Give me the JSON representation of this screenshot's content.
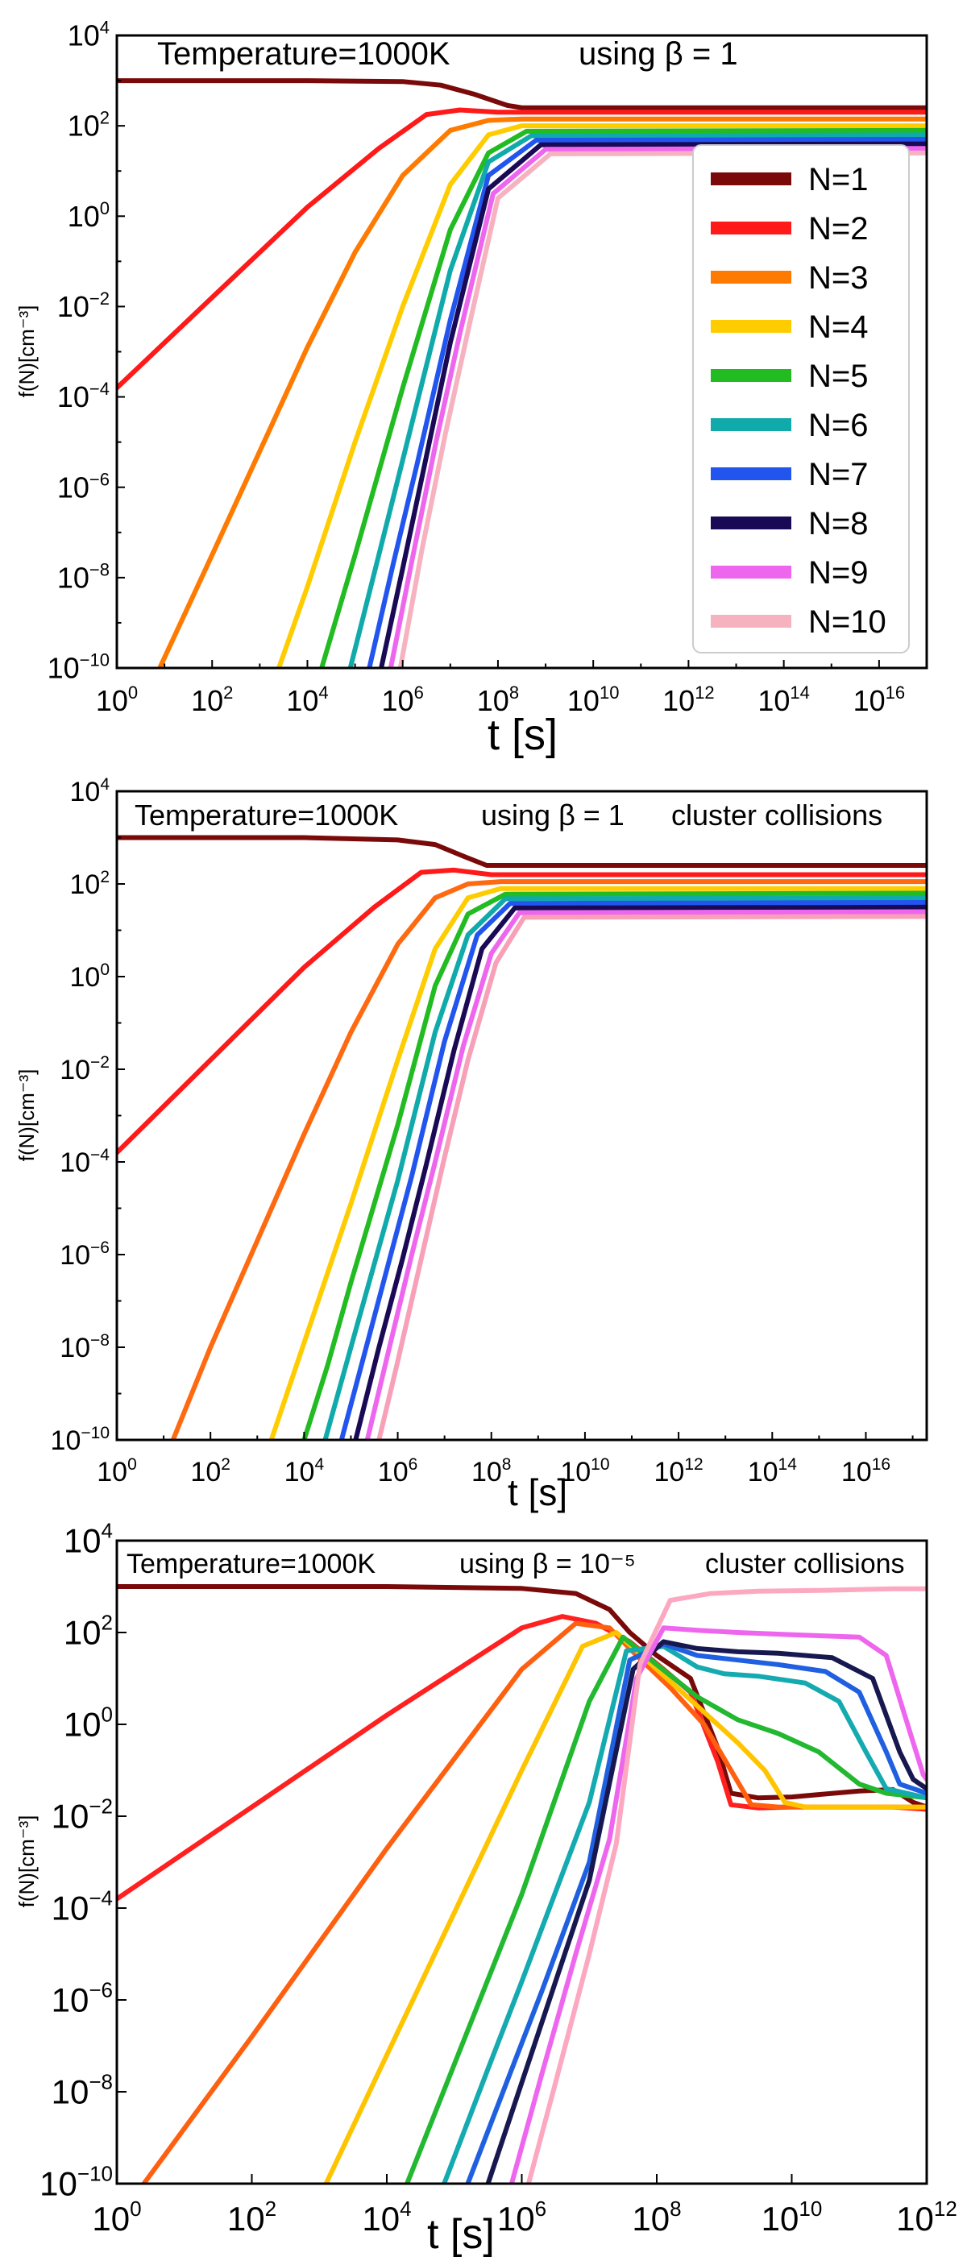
{
  "figure_title": "f(N) vs t at Temperature=1000K",
  "chart_data": [
    {
      "type": "line",
      "panel": "top",
      "title_temp": "Temperature=1000K",
      "title_beta": "using β = 1",
      "title_extra": "",
      "xlabel": "t [s]",
      "ylabel": "f(N)[cm⁻³]",
      "xscale": "log",
      "yscale": "log",
      "xlim_exp": [
        0,
        17
      ],
      "ylim_exp": [
        -10,
        4
      ],
      "xtick_labels": [
        "10^0",
        "10^2",
        "10^4",
        "10^6",
        "10^8",
        "10^10",
        "10^12",
        "10^14",
        "10^16"
      ],
      "ytick_labels": [
        "10^-10",
        "10^-8",
        "10^-6",
        "10^-4",
        "10^-2",
        "10^0",
        "10^2",
        "10^4"
      ],
      "legend": {
        "placement": "right",
        "entries": [
          "N=1",
          "N=2",
          "N=3",
          "N=4",
          "N=5",
          "N=6",
          "N=7",
          "N=8",
          "N=9",
          "N=10"
        ]
      },
      "series": [
        {
          "name": "N=1",
          "color": "#7a0a0a",
          "log_t": [
            0,
            4,
            6,
            6.8,
            7.5,
            8.2,
            8.5,
            17
          ],
          "log_f": [
            3,
            3,
            2.98,
            2.9,
            2.7,
            2.45,
            2.4,
            2.4
          ]
        },
        {
          "name": "N=2",
          "color": "#ff1a1a",
          "log_t": [
            0,
            2,
            4,
            5.5,
            6.5,
            7.2,
            8,
            9,
            17
          ],
          "log_f": [
            -3.8,
            -1.8,
            0.2,
            1.5,
            2.25,
            2.35,
            2.3,
            2.3,
            2.3
          ]
        },
        {
          "name": "N=3",
          "color": "#ff7a00",
          "log_t": [
            0.9,
            2,
            3,
            4,
            5,
            6,
            7,
            7.8,
            8.5,
            17
          ],
          "log_f": [
            -10,
            -7.5,
            -5.2,
            -2.9,
            -0.8,
            0.9,
            1.9,
            2.12,
            2.15,
            2.15
          ]
        },
        {
          "name": "N=4",
          "color": "#ffcc00",
          "log_t": [
            3.4,
            4,
            5,
            6,
            7,
            7.8,
            8.5,
            17
          ],
          "log_f": [
            -10,
            -8.2,
            -5,
            -2,
            0.7,
            1.8,
            2.0,
            2.0
          ]
        },
        {
          "name": "N=5",
          "color": "#22bb22",
          "log_t": [
            4.3,
            5,
            6,
            7,
            7.8,
            8.6,
            17
          ],
          "log_f": [
            -10,
            -7.5,
            -3.8,
            -0.3,
            1.4,
            1.88,
            1.9
          ]
        },
        {
          "name": "N=6",
          "color": "#11aaaa",
          "log_t": [
            4.9,
            5.5,
            6,
            7,
            7.8,
            8.7,
            17
          ],
          "log_f": [
            -10,
            -7.5,
            -5.4,
            -1.2,
            1.2,
            1.78,
            1.8
          ]
        },
        {
          "name": "N=7",
          "color": "#2255ee",
          "log_t": [
            5.3,
            5.8,
            6.3,
            7,
            7.8,
            8.8,
            17
          ],
          "log_f": [
            -10,
            -7.7,
            -5.5,
            -2.3,
            0.9,
            1.68,
            1.7
          ]
        },
        {
          "name": "N=8",
          "color": "#1a0a55",
          "log_t": [
            5.55,
            6,
            6.5,
            7,
            7.8,
            8.9,
            17
          ],
          "log_f": [
            -10,
            -7.8,
            -5.3,
            -2.8,
            0.6,
            1.58,
            1.6
          ]
        },
        {
          "name": "N=9",
          "color": "#ee66ee",
          "log_t": [
            5.75,
            6.2,
            6.7,
            7.2,
            7.9,
            9,
            17
          ],
          "log_f": [
            -10,
            -7.6,
            -5,
            -2.6,
            0.5,
            1.48,
            1.5
          ]
        },
        {
          "name": "N=10",
          "color": "#f7b2c0",
          "log_t": [
            5.95,
            6.4,
            6.9,
            7.4,
            8,
            9.1,
            17
          ],
          "log_f": [
            -10,
            -7.4,
            -4.8,
            -2.4,
            0.4,
            1.38,
            1.4
          ]
        }
      ]
    },
    {
      "type": "line",
      "panel": "middle",
      "title_temp": "Temperature=1000K",
      "title_beta": "using β = 1",
      "title_extra": "cluster collisions",
      "xlabel": "t [s]",
      "ylabel": "f(N)[cm⁻³]",
      "xscale": "log",
      "yscale": "log",
      "xlim_exp": [
        0,
        17.3
      ],
      "ylim_exp": [
        -10,
        4
      ],
      "xtick_labels": [
        "10^0",
        "10^2",
        "10^4",
        "10^6",
        "10^8",
        "10^10",
        "10^12",
        "10^14",
        "10^16"
      ],
      "ytick_labels": [
        "10^-10",
        "10^-8",
        "10^-6",
        "10^-4",
        "10^-2",
        "10^0",
        "10^2",
        "10^4"
      ],
      "series": [
        {
          "name": "N=1",
          "color": "#7a0a0a",
          "log_t": [
            0,
            4,
            6,
            6.8,
            7.4,
            7.9,
            8.2,
            17.3
          ],
          "log_f": [
            3,
            3,
            2.95,
            2.85,
            2.6,
            2.4,
            2.4,
            2.4
          ]
        },
        {
          "name": "N=2",
          "color": "#ff1a1a",
          "log_t": [
            0,
            2,
            4,
            5.5,
            6.5,
            7.2,
            8,
            17.3
          ],
          "log_f": [
            -3.8,
            -1.8,
            0.2,
            1.5,
            2.25,
            2.3,
            2.2,
            2.2
          ]
        },
        {
          "name": "N=3",
          "color": "#ff6a10",
          "log_t": [
            1.2,
            2,
            3,
            4,
            5,
            6,
            6.8,
            7.5,
            8.2,
            17.3
          ],
          "log_f": [
            -10,
            -8,
            -5.7,
            -3.4,
            -1.2,
            0.7,
            1.7,
            2.0,
            2.05,
            2.05
          ]
        },
        {
          "name": "N=4",
          "color": "#ffcc00",
          "log_t": [
            3.3,
            4,
            5,
            6,
            6.8,
            7.5,
            8.2,
            17.3
          ],
          "log_f": [
            -10,
            -7.9,
            -4.9,
            -1.8,
            0.6,
            1.7,
            1.9,
            1.9
          ]
        },
        {
          "name": "N=5",
          "color": "#22bb22",
          "log_t": [
            4,
            4.5,
            5,
            6,
            6.8,
            7.5,
            8.3,
            17.3
          ],
          "log_f": [
            -10,
            -8.4,
            -6.6,
            -3.2,
            -0.2,
            1.35,
            1.78,
            1.8
          ]
        },
        {
          "name": "N=6",
          "color": "#11aaaa",
          "log_t": [
            4.45,
            5,
            5.5,
            6,
            6.8,
            7.5,
            8.3,
            17.3
          ],
          "log_f": [
            -10,
            -8,
            -6.2,
            -4.4,
            -1.2,
            0.9,
            1.68,
            1.7
          ]
        },
        {
          "name": "N=7",
          "color": "#2255ee",
          "log_t": [
            4.8,
            5.3,
            5.8,
            6.3,
            7,
            7.7,
            8.4,
            17.3
          ],
          "log_f": [
            -10,
            -8.1,
            -6.2,
            -4.3,
            -1.4,
            0.9,
            1.58,
            1.6
          ]
        },
        {
          "name": "N=8",
          "color": "#1a0a55",
          "log_t": [
            5.1,
            5.6,
            6.1,
            6.6,
            7.2,
            7.8,
            8.5,
            17.3
          ],
          "log_f": [
            -10,
            -8,
            -6.1,
            -4.1,
            -1.6,
            0.6,
            1.48,
            1.5
          ]
        },
        {
          "name": "N=9",
          "color": "#ee66ee",
          "log_t": [
            5.35,
            5.8,
            6.3,
            6.8,
            7.4,
            8,
            8.6,
            17.3
          ],
          "log_f": [
            -10,
            -8.1,
            -6,
            -4,
            -1.5,
            0.5,
            1.38,
            1.4
          ]
        },
        {
          "name": "N=10",
          "color": "#f7a0b8",
          "log_t": [
            5.6,
            6,
            6.5,
            7,
            7.5,
            8.1,
            8.7,
            17.3
          ],
          "log_f": [
            -10,
            -8.3,
            -6.1,
            -3.9,
            -1.8,
            0.3,
            1.28,
            1.3
          ]
        }
      ]
    },
    {
      "type": "line",
      "panel": "bottom",
      "title_temp": "Temperature=1000K",
      "title_beta": "using β = 10⁻⁵",
      "title_extra": "cluster collisions",
      "xlabel": "t [s]",
      "ylabel": "f(N)[cm⁻³]",
      "xscale": "log",
      "yscale": "log",
      "xlim_exp": [
        0,
        12
      ],
      "ylim_exp": [
        -10,
        4
      ],
      "xtick_labels": [
        "10^0",
        "10^2",
        "10^4",
        "10^6",
        "10^8",
        "10^10",
        "10^12"
      ],
      "ytick_labels": [
        "10^-10",
        "10^-8",
        "10^-6",
        "10^-4",
        "10^-2",
        "10^0",
        "10^2",
        "10^4"
      ],
      "series": [
        {
          "name": "N=1",
          "color": "#7a0a0a",
          "log_t": [
            0,
            4,
            6,
            6.8,
            7.3,
            7.6,
            8,
            8.5,
            8.9,
            9.1,
            9.5,
            10,
            11,
            11.5,
            11.8,
            12
          ],
          "log_f": [
            3,
            3,
            2.96,
            2.85,
            2.5,
            2.0,
            1.5,
            1.0,
            -0.5,
            -1.5,
            -1.6,
            -1.58,
            -1.45,
            -1.42,
            -1.7,
            -1.8
          ]
        },
        {
          "name": "N=2",
          "color": "#ff2020",
          "log_t": [
            0,
            2,
            4,
            6,
            6.6,
            7.1,
            7.6,
            8.1,
            8.5,
            8.9,
            9.1,
            9.5,
            10,
            11,
            11.5,
            12
          ],
          "log_f": [
            -3.8,
            -1.8,
            0.2,
            2.1,
            2.35,
            2.2,
            1.8,
            1.2,
            0.7,
            -0.8,
            -1.75,
            -1.82,
            -1.8,
            -1.8,
            -1.8,
            -1.85
          ]
        },
        {
          "name": "N=3",
          "color": "#ff6010",
          "log_t": [
            0.4,
            2,
            4,
            6,
            6.8,
            7.3,
            7.7,
            8.2,
            8.7,
            9.1,
            9.4,
            9.8,
            10,
            11,
            12
          ],
          "log_f": [
            -10,
            -6.8,
            -2.7,
            1.2,
            2.2,
            2.1,
            1.5,
            0.8,
            0,
            -1.0,
            -1.75,
            -1.8,
            -1.8,
            -1.8,
            -1.8
          ]
        },
        {
          "name": "N=4",
          "color": "#ffc400",
          "log_t": [
            3.1,
            4,
            5,
            6,
            6.9,
            7.4,
            8,
            8.6,
            9.2,
            9.6,
            9.9,
            10.2,
            11,
            12
          ],
          "log_f": [
            -10,
            -7.2,
            -4.1,
            -1,
            1.7,
            2.0,
            1.2,
            0.4,
            -0.4,
            -1.0,
            -1.7,
            -1.8,
            -1.8,
            -1.8
          ]
        },
        {
          "name": "N=5",
          "color": "#22b830",
          "log_t": [
            4.3,
            5,
            6,
            7,
            7.5,
            8,
            8.6,
            9.2,
            9.8,
            10.4,
            11,
            11.4,
            12
          ],
          "log_f": [
            -10,
            -7.4,
            -3.7,
            0.5,
            1.9,
            1.3,
            0.6,
            0.1,
            -0.2,
            -0.6,
            -1.3,
            -1.5,
            -1.6
          ]
        },
        {
          "name": "N=6",
          "color": "#14aab0",
          "log_t": [
            4.85,
            5.5,
            6,
            7,
            7.55,
            8.1,
            8.6,
            9,
            9.5,
            10.2,
            10.7,
            11.1,
            11.4,
            12
          ],
          "log_f": [
            -10,
            -7.5,
            -5.6,
            -1.7,
            1.6,
            1.7,
            1.25,
            1.1,
            1.05,
            0.9,
            0.5,
            -0.6,
            -1.4,
            -1.6
          ]
        },
        {
          "name": "N=7",
          "color": "#2060e0",
          "log_t": [
            5.2,
            5.8,
            6.3,
            7,
            7.6,
            8.1,
            8.6,
            9.2,
            9.8,
            10.5,
            11,
            11.4,
            11.6,
            12
          ],
          "log_f": [
            -10,
            -7.7,
            -5.8,
            -3,
            1.4,
            1.75,
            1.5,
            1.4,
            1.3,
            1.15,
            0.7,
            -0.6,
            -1.3,
            -1.5
          ]
        },
        {
          "name": "N=8",
          "color": "#181850",
          "log_t": [
            5.5,
            6,
            6.5,
            7,
            7.65,
            8.1,
            8.6,
            9.2,
            9.8,
            10.6,
            11.2,
            11.6,
            11.8,
            12
          ],
          "log_f": [
            -10,
            -7.8,
            -5.6,
            -3.4,
            1.2,
            1.8,
            1.65,
            1.58,
            1.55,
            1.45,
            1.0,
            -0.6,
            -1.2,
            -1.4
          ]
        },
        {
          "name": "N=9",
          "color": "#ee66ee",
          "log_t": [
            5.85,
            6.3,
            6.8,
            7.3,
            7.7,
            8.1,
            8.6,
            9.2,
            10,
            11,
            11.4,
            11.8,
            11.95,
            12
          ],
          "log_f": [
            -10,
            -7.6,
            -5,
            -2.5,
            1.0,
            2.1,
            2.05,
            2.0,
            1.95,
            1.9,
            1.5,
            -0.4,
            -1.1,
            -1.2
          ]
        },
        {
          "name": "N=10",
          "color": "#fca8c0",
          "log_t": [
            6.1,
            6.5,
            7,
            7.4,
            7.75,
            8.2,
            8.8,
            9.5,
            10.5,
            11.5,
            12
          ],
          "log_f": [
            -10,
            -7.8,
            -5,
            -2.6,
            1.3,
            2.7,
            2.85,
            2.9,
            2.92,
            2.95,
            2.95
          ]
        }
      ]
    }
  ]
}
